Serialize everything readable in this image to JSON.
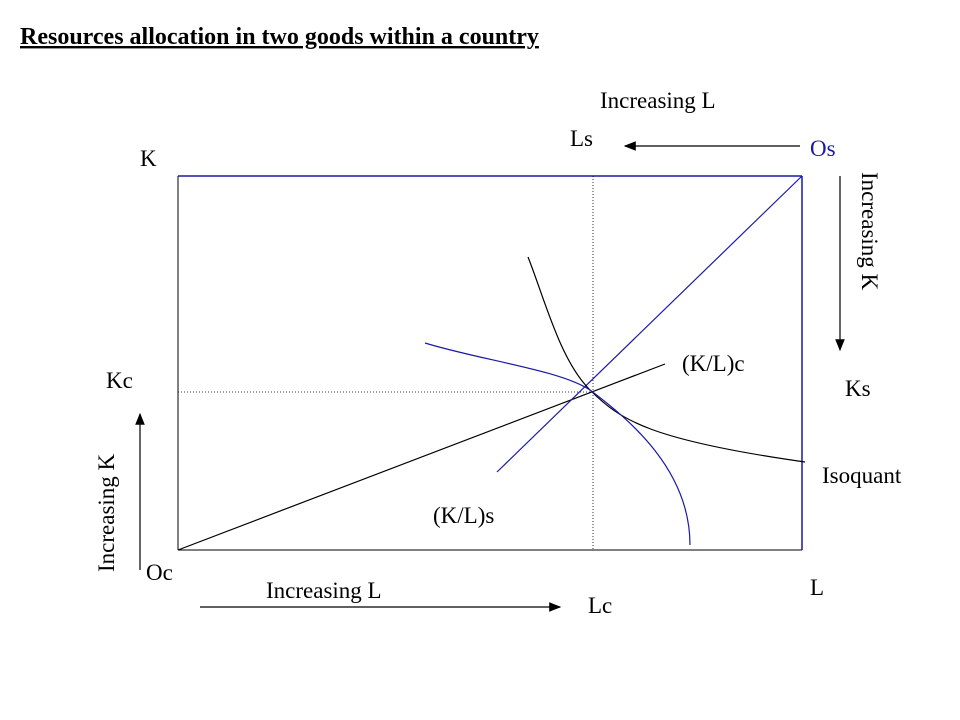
{
  "title": "Resources allocation in two goods within a country",
  "labels": {
    "os": "Os",
    "ls": "Ls",
    "increasing_l_top": "Increasing L",
    "increasing_k_right": "Increasing K",
    "ks": "Ks",
    "k": "K",
    "kc": "Kc",
    "increasing_k_left": "Increasing K",
    "oc": "Oc",
    "increasing_l_bottom": "Increasing L",
    "lc": "Lc",
    "l": "L",
    "isoquant": "Isoquant",
    "kl_c": "(K/L)c",
    "kl_s": "(K/L)s"
  }
}
